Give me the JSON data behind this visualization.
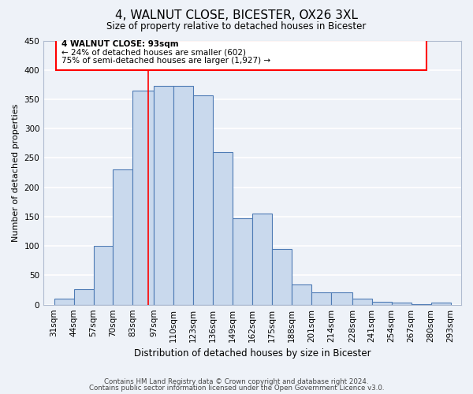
{
  "title": "4, WALNUT CLOSE, BICESTER, OX26 3XL",
  "subtitle": "Size of property relative to detached houses in Bicester",
  "xlabel": "Distribution of detached houses by size in Bicester",
  "ylabel": "Number of detached properties",
  "bin_labels": [
    "31sqm",
    "44sqm",
    "57sqm",
    "70sqm",
    "83sqm",
    "97sqm",
    "110sqm",
    "123sqm",
    "136sqm",
    "149sqm",
    "162sqm",
    "175sqm",
    "188sqm",
    "201sqm",
    "214sqm",
    "228sqm",
    "241sqm",
    "254sqm",
    "267sqm",
    "280sqm",
    "293sqm"
  ],
  "bar_heights": [
    10,
    27,
    100,
    230,
    365,
    373,
    373,
    357,
    260,
    147,
    155,
    95,
    34,
    21,
    21,
    10,
    5,
    4,
    1,
    3
  ],
  "bar_color": "#c9d9ed",
  "bar_edge_color": "#4e7bb5",
  "bar_edge_width": 0.8,
  "vline_x": 93,
  "vline_color": "red",
  "ylim": [
    0,
    450
  ],
  "yticks": [
    0,
    50,
    100,
    150,
    200,
    250,
    300,
    350,
    400,
    450
  ],
  "annotation_title": "4 WALNUT CLOSE: 93sqm",
  "annotation_line1": "← 24% of detached houses are smaller (602)",
  "annotation_line2": "75% of semi-detached houses are larger (1,927) →",
  "annotation_box_color": "#ffffff",
  "annotation_box_edge": "red",
  "footer_line1": "Contains HM Land Registry data © Crown copyright and database right 2024.",
  "footer_line2": "Contains public sector information licensed under the Open Government Licence v3.0.",
  "background_color": "#eef2f8",
  "grid_color": "#ffffff",
  "bin_edges": [
    31,
    44,
    57,
    70,
    83,
    97,
    110,
    123,
    136,
    149,
    162,
    175,
    188,
    201,
    214,
    228,
    241,
    254,
    267,
    280,
    293
  ]
}
